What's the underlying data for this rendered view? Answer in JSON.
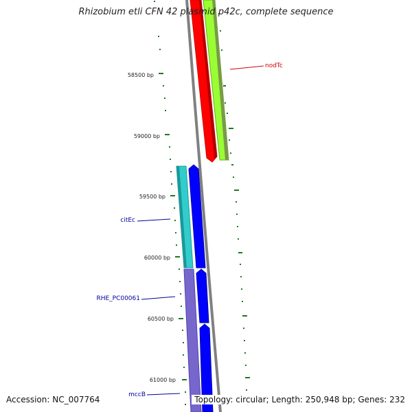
{
  "title": "Rhizobium etli CFN 42 plasmid p42c, complete sequence",
  "footer": {
    "accession": "Accession: NC_007764",
    "summary": "Topology: circular; Length: 250,948 bp; Genes: 232"
  },
  "ruler_labels": [
    {
      "id": "58500",
      "text": "58500 bp"
    },
    {
      "id": "59000",
      "text": "59000 bp"
    },
    {
      "id": "59500",
      "text": "59500 bp"
    },
    {
      "id": "60000",
      "text": "60000 bp"
    },
    {
      "id": "60500",
      "text": "60500 bp"
    },
    {
      "id": "61000",
      "text": "61000 bp"
    }
  ],
  "gene_labels": [
    {
      "id": "nodTc",
      "text": "nodTc",
      "color": "#cc0000"
    },
    {
      "id": "citEc",
      "text": "citEc",
      "color": "#000099"
    },
    {
      "id": "RHE_PC00061",
      "text": "RHE_PC00061",
      "color": "#000099"
    },
    {
      "id": "mccB",
      "text": "mccB",
      "color": "#000099"
    }
  ],
  "colors": {
    "backbone": "#808080",
    "ticks": "#1a7a1a",
    "nodTc": "#ff0000",
    "nodTc_outer": "#99ff33",
    "citEc": "#33cccc",
    "RHE_PC00061": "#0000ff",
    "mccB": "#7766cc"
  }
}
